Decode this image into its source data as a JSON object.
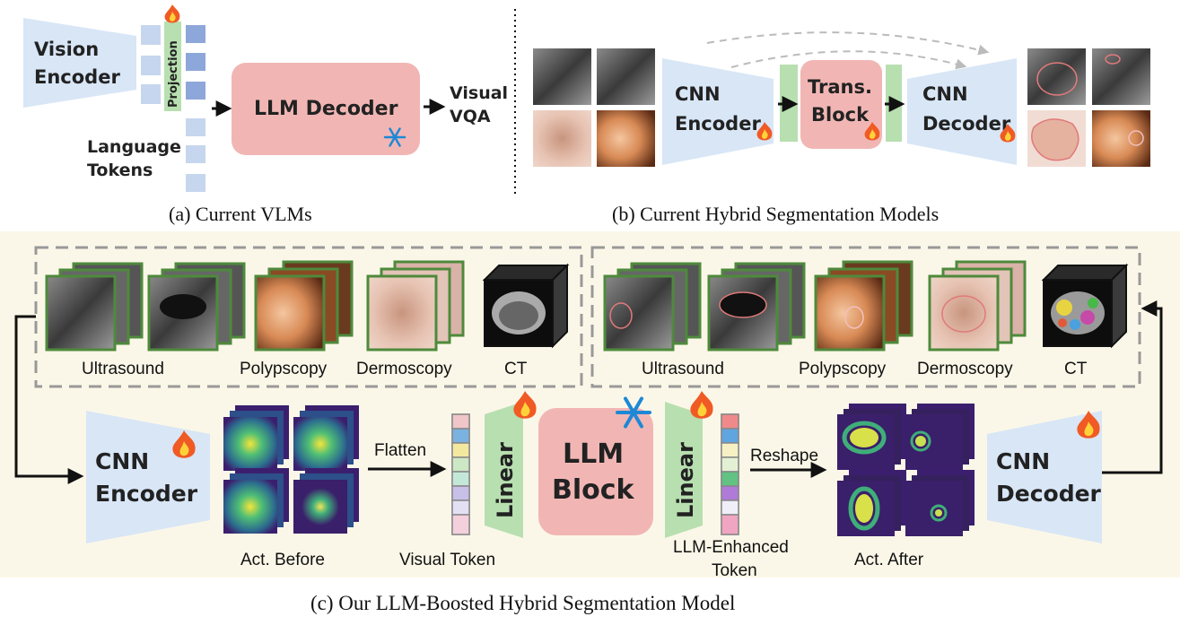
{
  "panel_a": {
    "vision_encoder": [
      "Vision",
      "Encoder"
    ],
    "projection": "Projection",
    "llm_decoder": "LLM Decoder",
    "output": [
      "Visual",
      "VQA"
    ],
    "language_tokens": [
      "Language",
      "Tokens"
    ],
    "caption": "(a) Current VLMs"
  },
  "panel_b": {
    "cnn_encoder": [
      "CNN",
      "Encoder"
    ],
    "trans_block": [
      "Trans.",
      "Block"
    ],
    "cnn_decoder": [
      "CNN",
      "Decoder"
    ],
    "caption": "(b) Current Hybrid Segmentation Models"
  },
  "panel_c": {
    "input_modalities": [
      "Ultrasound",
      "Polypscopy",
      "Dermoscopy",
      "CT"
    ],
    "output_modalities": [
      "Ultrasound",
      "Polypscopy",
      "Dermoscopy",
      "CT"
    ],
    "cnn_encoder": [
      "CNN",
      "Encoder"
    ],
    "act_before": "Act. Before",
    "flatten": "Flatten",
    "visual_token": "Visual Token",
    "linear_in": "Linear",
    "llm_block": [
      "LLM",
      "Block"
    ],
    "linear_out": "Linear",
    "enhanced_token": [
      "LLM-Enhanced",
      "Token"
    ],
    "reshape": "Reshape",
    "act_after": "Act. After",
    "cnn_decoder": [
      "CNN",
      "Decoder"
    ],
    "caption": "(c) Our LLM-Boosted Hybrid Segmentation Model"
  },
  "colors": {
    "encoder_blue": "#d8e6f6",
    "token_blue": "#c6d6ee",
    "token_blue_dark": "#8ea7da",
    "llm_pink": "#f1b6b4",
    "linear_green": "#b8dfb0",
    "panel_bg": "#fbf7e8",
    "image_frame": "#4e8a3c"
  }
}
